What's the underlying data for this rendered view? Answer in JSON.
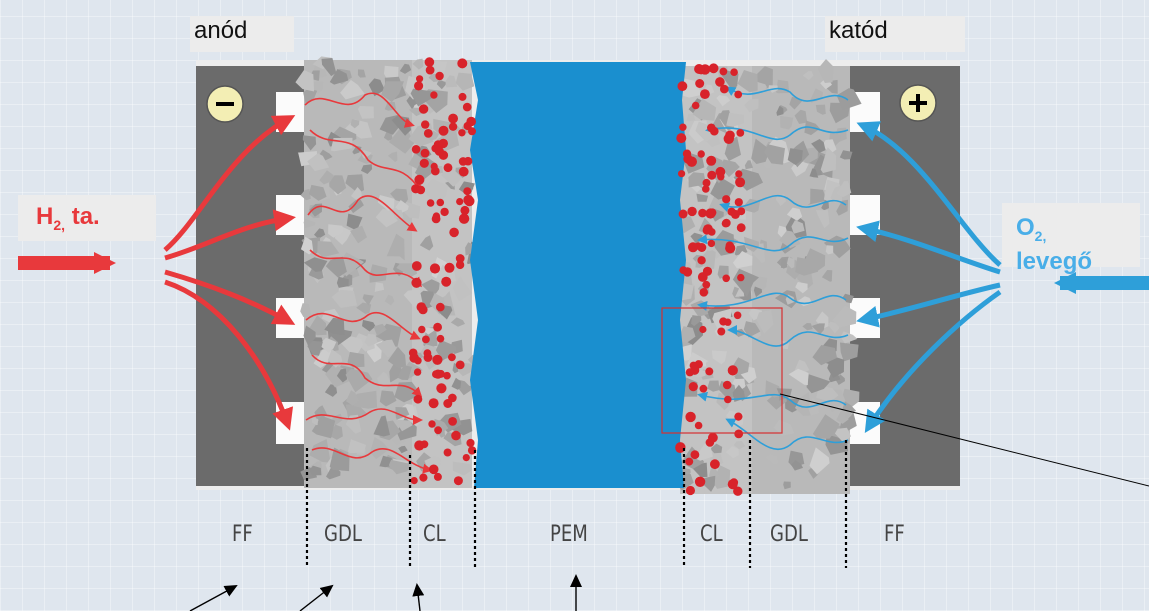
{
  "electrodes": {
    "anode": "anód",
    "cathode": "katód",
    "anode_sign": "−",
    "cathode_sign": "+"
  },
  "inlets": {
    "anode_gas": "H",
    "anode_gas_subscript": "2,",
    "anode_gas_suffix": "ta.",
    "cathode_gas": "O",
    "cathode_gas_subscript": "2,",
    "cathode_gas_line2": "levegő"
  },
  "layers": [
    "FF",
    "GDL",
    "CL",
    "PEM",
    "CL",
    "GDL",
    "FF"
  ],
  "colors": {
    "hydrogen": "#e8393c",
    "oxygen": "#2e9fd9",
    "membrane": "#1a8fcf",
    "flow_field": "#6b6b6b",
    "gdl": "#b9b9b9",
    "catalyst_particle": "#d8232a",
    "detail_box": "#d63031"
  }
}
